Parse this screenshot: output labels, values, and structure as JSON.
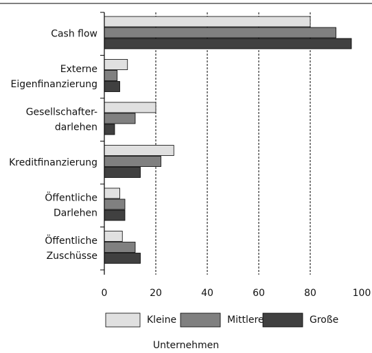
{
  "chart_data": {
    "type": "hbar",
    "categories": [
      [
        "Cash flow"
      ],
      [
        "Externe",
        "Eigenfinanzierung"
      ],
      [
        "Gesellschafter-",
        "darlehen"
      ],
      [
        "Kreditfinanzierung"
      ],
      [
        "Öffentliche",
        "Darlehen"
      ],
      [
        "Öffentliche",
        "Zuschüsse"
      ]
    ],
    "series": [
      {
        "name": "Kleine",
        "color": "#e0e0e0",
        "values": [
          80,
          9,
          20,
          27,
          6,
          7
        ]
      },
      {
        "name": "Mittlere",
        "color": "#808080",
        "values": [
          90,
          5,
          12,
          22,
          8,
          12
        ]
      },
      {
        "name": "Große",
        "color": "#404040",
        "values": [
          96,
          6,
          4,
          14,
          8,
          14
        ]
      }
    ],
    "xlim": [
      0,
      100
    ],
    "xticks": [
      0,
      20,
      40,
      60,
      80,
      100
    ],
    "grid": true,
    "legend_title": "Unternehmen"
  }
}
